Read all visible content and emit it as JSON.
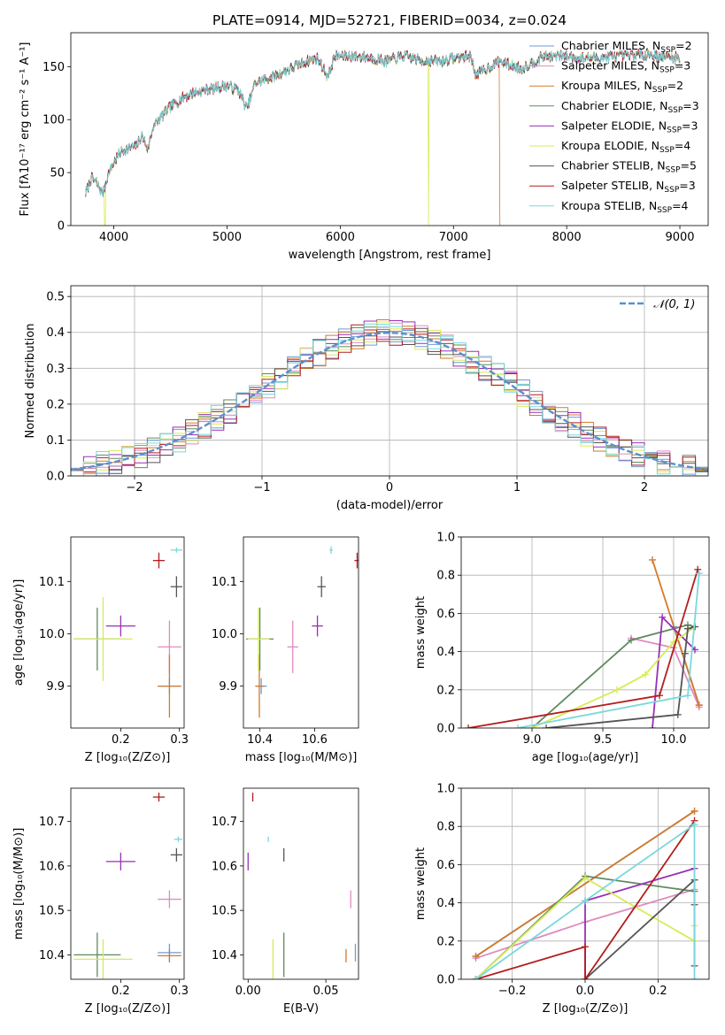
{
  "colors": {
    "Chabrier MILES": "#6f9bd8",
    "Salpeter MILES": "#e08bc0",
    "Kroupa MILES": "#d27a2a",
    "Chabrier ELODIE": "#5f8a60",
    "Salpeter ELODIE": "#9a2fb5",
    "Kroupa ELODIE": "#d5ec55",
    "Chabrier STELIB": "#555555",
    "Salpeter STELIB": "#b31d1d",
    "Kroupa STELIB": "#7ad8dd"
  },
  "chart_data": [
    {
      "id": "spectrum",
      "type": "line",
      "title": "PLATE=0914, MJD=52721, FIBERID=0034, z=0.024",
      "xlabel": "wavelength [Angstrom, rest frame]",
      "ylabel": "Flux [fλ10⁻¹⁷ erg cm⁻² s⁻¹ A⁻¹]",
      "xlim": [
        3620,
        9250
      ],
      "ylim": [
        0,
        182
      ],
      "xticks": [
        4000,
        5000,
        6000,
        7000,
        8000,
        9000
      ],
      "yticks": [
        0,
        50,
        100,
        150
      ],
      "legend_placement": "right",
      "legend": [
        {
          "label": "Chabrier MILES, N",
          "sub": "SSP",
          "suffix": "=2"
        },
        {
          "label": "Salpeter MILES, N",
          "sub": "SSP",
          "suffix": "=3"
        },
        {
          "label": "Kroupa MILES, N",
          "sub": "SSP",
          "suffix": "=2"
        },
        {
          "label": "Chabrier ELODIE, N",
          "sub": "SSP",
          "suffix": "=3"
        },
        {
          "label": "Salpeter ELODIE, N",
          "sub": "SSP",
          "suffix": "=3"
        },
        {
          "label": "Kroupa ELODIE, N",
          "sub": "SSP",
          "suffix": "=4"
        },
        {
          "label": "Chabrier STELIB, N",
          "sub": "SSP",
          "suffix": "=5"
        },
        {
          "label": "Salpeter STELIB, N",
          "sub": "SSP",
          "suffix": "=3"
        },
        {
          "label": "Kroupa STELIB, N",
          "sub": "SSP",
          "suffix": "=4"
        }
      ],
      "continuum": [
        [
          3750,
          30
        ],
        [
          3800,
          45
        ],
        [
          3850,
          40
        ],
        [
          3900,
          30
        ],
        [
          3950,
          48
        ],
        [
          4000,
          60
        ],
        [
          4050,
          68
        ],
        [
          4100,
          72
        ],
        [
          4200,
          75
        ],
        [
          4250,
          85
        ],
        [
          4300,
          72
        ],
        [
          4350,
          95
        ],
        [
          4400,
          100
        ],
        [
          4500,
          112
        ],
        [
          4600,
          120
        ],
        [
          4700,
          125
        ],
        [
          4800,
          128
        ],
        [
          4900,
          130
        ],
        [
          5000,
          132
        ],
        [
          5100,
          128
        ],
        [
          5175,
          110
        ],
        [
          5250,
          135
        ],
        [
          5400,
          140
        ],
        [
          5500,
          145
        ],
        [
          5600,
          150
        ],
        [
          5700,
          155
        ],
        [
          5800,
          158
        ],
        [
          5893,
          140
        ],
        [
          5950,
          160
        ],
        [
          6100,
          160
        ],
        [
          6300,
          158
        ],
        [
          6400,
          155
        ],
        [
          6563,
          160
        ],
        [
          6700,
          156
        ],
        [
          6900,
          155
        ],
        [
          7000,
          158
        ],
        [
          7150,
          160
        ],
        [
          7200,
          142
        ],
        [
          7400,
          155
        ],
        [
          7600,
          148
        ],
        [
          7800,
          160
        ],
        [
          8000,
          160
        ],
        [
          8200,
          158
        ],
        [
          8500,
          160
        ],
        [
          8700,
          162
        ],
        [
          8800,
          160
        ],
        [
          9000,
          158
        ]
      ],
      "dropouts": [
        {
          "series": "Kroupa ELODIE",
          "x": 3920
        },
        {
          "series": "Kroupa ELODIE",
          "x": 6780
        },
        {
          "series": "Kroupa MILES",
          "x": 7410
        }
      ]
    },
    {
      "id": "residuals",
      "type": "step",
      "xlabel": "(data-model)/error",
      "ylabel": "Normed distribution",
      "xlim": [
        -2.5,
        2.5
      ],
      "ylim": [
        0,
        0.53
      ],
      "xticks": [
        -2,
        -1,
        0,
        1,
        2
      ],
      "yticks": [
        0.0,
        0.1,
        0.2,
        0.3,
        0.4,
        0.5
      ],
      "grid": true,
      "legend_placement": "top-right",
      "gaussian_label": "𝒩(0, 1)",
      "gaussian_color": "#5b8fd0",
      "bin_width": 0.1
    },
    {
      "id": "age-vs-Z",
      "type": "errorbar",
      "xlabel": "Z [log₁₀(Z/Z⊙)]",
      "ylabel": "age  [log₁₀(age/yr)]",
      "xlim": [
        0.115,
        0.308
      ],
      "ylim": [
        9.82,
        10.185
      ],
      "xticks": [
        0.2,
        0.3
      ],
      "yticks": [
        9.9,
        10.0,
        10.1
      ],
      "points": [
        {
          "series": "Chabrier MILES",
          "x": 0.283,
          "y": 9.9,
          "xerr": 0.02,
          "yerr": 0.015
        },
        {
          "series": "Salpeter MILES",
          "x": 0.283,
          "y": 9.975,
          "xerr": 0.02,
          "yerr": 0.05
        },
        {
          "series": "Kroupa MILES",
          "x": 0.283,
          "y": 9.9,
          "xerr": 0.02,
          "yerr": 0.06
        },
        {
          "series": "Chabrier ELODIE",
          "x": 0.16,
          "y": 9.99,
          "xerr": 0.04,
          "yerr": 0.06
        },
        {
          "series": "Salpeter ELODIE",
          "x": 0.2,
          "y": 10.015,
          "xerr": 0.025,
          "yerr": 0.02
        },
        {
          "series": "Kroupa ELODIE",
          "x": 0.17,
          "y": 9.99,
          "xerr": 0.05,
          "yerr": 0.08
        },
        {
          "series": "Chabrier STELIB",
          "x": 0.295,
          "y": 10.09,
          "xerr": 0.01,
          "yerr": 0.02
        },
        {
          "series": "Salpeter STELIB",
          "x": 0.265,
          "y": 10.14,
          "xerr": 0.01,
          "yerr": 0.015
        },
        {
          "series": "Kroupa STELIB",
          "x": 0.295,
          "y": 10.16,
          "xerr": 0.01,
          "yerr": 0.005
        }
      ]
    },
    {
      "id": "age-vs-mass",
      "type": "errorbar",
      "xlabel": "mass [log₁₀(M/M⊙)]",
      "ylabel": "",
      "xlim": [
        10.34,
        10.76
      ],
      "ylim": [
        9.82,
        10.185
      ],
      "xticks": [
        10.4,
        10.6
      ],
      "yticks": [
        9.9,
        10.0,
        10.1
      ],
      "points": [
        {
          "series": "Chabrier MILES",
          "x": 10.405,
          "y": 9.9,
          "xerr": 0.02,
          "yerr": 0.015
        },
        {
          "series": "Salpeter MILES",
          "x": 10.52,
          "y": 9.975,
          "xerr": 0.02,
          "yerr": 0.05
        },
        {
          "series": "Kroupa MILES",
          "x": 10.398,
          "y": 9.9,
          "xerr": 0.015,
          "yerr": 0.06
        },
        {
          "series": "Chabrier ELODIE",
          "x": 10.4,
          "y": 9.99,
          "xerr": 0.05,
          "yerr": 0.06
        },
        {
          "series": "Salpeter ELODIE",
          "x": 10.61,
          "y": 10.015,
          "xerr": 0.02,
          "yerr": 0.02
        },
        {
          "series": "Kroupa ELODIE",
          "x": 10.395,
          "y": 9.99,
          "xerr": 0.04,
          "yerr": 0.06
        },
        {
          "series": "Chabrier STELIB",
          "x": 10.625,
          "y": 10.09,
          "xerr": 0.015,
          "yerr": 0.02
        },
        {
          "series": "Salpeter STELIB",
          "x": 10.755,
          "y": 10.14,
          "xerr": 0.01,
          "yerr": 0.015
        },
        {
          "series": "Kroupa STELIB",
          "x": 10.66,
          "y": 10.16,
          "xerr": 0.006,
          "yerr": 0.007
        }
      ]
    },
    {
      "id": "mass-weight-vs-age",
      "type": "line",
      "xlabel": "age  [log₁₀(age/yr)]",
      "ylabel": "mass weight",
      "xlim": [
        8.5,
        10.25
      ],
      "ylim": [
        0,
        1.0
      ],
      "xticks": [
        9.0,
        9.5,
        10.0
      ],
      "yticks": [
        0.0,
        0.2,
        0.4,
        0.6,
        0.8,
        1.0
      ],
      "grid": true,
      "series": [
        {
          "name": "Chabrier MILES",
          "x": [
            10.0,
            10.18
          ],
          "y": [
            0.53,
            0.12
          ]
        },
        {
          "name": "Salpeter MILES",
          "x": [
            9.7,
            10.0,
            10.18
          ],
          "y": [
            0.47,
            0.42,
            0.11
          ]
        },
        {
          "name": "Kroupa MILES",
          "x": [
            9.85,
            10.18
          ],
          "y": [
            0.88,
            0.12
          ]
        },
        {
          "name": "Chabrier ELODIE",
          "x": [
            9.0,
            9.7,
            10.1,
            10.15
          ],
          "y": [
            0.0,
            0.46,
            0.54,
            0.53
          ]
        },
        {
          "name": "Salpeter ELODIE",
          "x": [
            9.85,
            9.92,
            10.15
          ],
          "y": [
            0.0,
            0.58,
            0.41
          ]
        },
        {
          "name": "Kroupa ELODIE",
          "x": [
            9.0,
            9.6,
            9.8,
            10.0,
            10.15
          ],
          "y": [
            0.0,
            0.2,
            0.28,
            0.45,
            0.53
          ]
        },
        {
          "name": "Chabrier STELIB",
          "x": [
            9.1,
            10.03,
            10.08,
            10.1,
            10.15
          ],
          "y": [
            0.0,
            0.07,
            0.39,
            0.52,
            0.53
          ]
        },
        {
          "name": "Salpeter STELIB",
          "x": [
            8.55,
            9.9,
            10.17
          ],
          "y": [
            0.0,
            0.17,
            0.83
          ]
        },
        {
          "name": "Kroupa STELIB",
          "x": [
            8.9,
            10.1,
            10.18
          ],
          "y": [
            0.0,
            0.17,
            0.81
          ]
        }
      ]
    },
    {
      "id": "mass-vs-Z",
      "type": "errorbar",
      "xlabel": "Z [log₁₀(Z/Z⊙)]",
      "ylabel": "mass [log₁₀(M/M⊙)]",
      "xlim": [
        0.115,
        0.308
      ],
      "ylim": [
        10.345,
        10.775
      ],
      "xticks": [
        0.2,
        0.3
      ],
      "yticks": [
        10.4,
        10.5,
        10.6,
        10.7
      ],
      "points": [
        {
          "series": "Chabrier MILES",
          "x": 0.283,
          "y": 10.405,
          "xerr": 0.02,
          "yerr": 0.02
        },
        {
          "series": "Salpeter MILES",
          "x": 0.283,
          "y": 10.525,
          "xerr": 0.02,
          "yerr": 0.02
        },
        {
          "series": "Kroupa MILES",
          "x": 0.283,
          "y": 10.398,
          "xerr": 0.02,
          "yerr": 0.015
        },
        {
          "series": "Chabrier ELODIE",
          "x": 0.16,
          "y": 10.4,
          "xerr": 0.04,
          "yerr": 0.05
        },
        {
          "series": "Salpeter ELODIE",
          "x": 0.2,
          "y": 10.61,
          "xerr": 0.025,
          "yerr": 0.02
        },
        {
          "series": "Kroupa ELODIE",
          "x": 0.17,
          "y": 10.39,
          "xerr": 0.05,
          "yerr": 0.045
        },
        {
          "series": "Chabrier STELIB",
          "x": 0.295,
          "y": 10.625,
          "xerr": 0.01,
          "yerr": 0.015
        },
        {
          "series": "Salpeter STELIB",
          "x": 0.265,
          "y": 10.755,
          "xerr": 0.01,
          "yerr": 0.01
        },
        {
          "series": "Kroupa STELIB",
          "x": 0.298,
          "y": 10.66,
          "xerr": 0.007,
          "yerr": 0.006
        }
      ]
    },
    {
      "id": "mass-vs-EBV",
      "type": "errorbar",
      "xlabel": "E(B-V)",
      "ylabel": "",
      "xlim": [
        -0.003,
        0.071
      ],
      "ylim": [
        10.345,
        10.775
      ],
      "xticks": [
        0.0,
        0.05
      ],
      "yticks": [
        10.4,
        10.5,
        10.6,
        10.7
      ],
      "points": [
        {
          "series": "Chabrier MILES",
          "x": 0.069,
          "y": 10.405,
          "xerr": 0.0,
          "yerr": 0.02
        },
        {
          "series": "Salpeter MILES",
          "x": 0.066,
          "y": 10.525,
          "xerr": 0.0,
          "yerr": 0.02
        },
        {
          "series": "Kroupa MILES",
          "x": 0.063,
          "y": 10.398,
          "xerr": 0.0,
          "yerr": 0.015
        },
        {
          "series": "Chabrier ELODIE",
          "x": 0.023,
          "y": 10.4,
          "xerr": 0.0,
          "yerr": 0.05
        },
        {
          "series": "Salpeter ELODIE",
          "x": 0.0,
          "y": 10.61,
          "xerr": 0.0,
          "yerr": 0.02
        },
        {
          "series": "Kroupa ELODIE",
          "x": 0.016,
          "y": 10.39,
          "xerr": 0.0,
          "yerr": 0.045
        },
        {
          "series": "Chabrier STELIB",
          "x": 0.023,
          "y": 10.625,
          "xerr": 0.0,
          "yerr": 0.015
        },
        {
          "series": "Salpeter STELIB",
          "x": 0.003,
          "y": 10.755,
          "xerr": 0.0,
          "yerr": 0.01
        },
        {
          "series": "Kroupa STELIB",
          "x": 0.013,
          "y": 10.66,
          "xerr": 0.0,
          "yerr": 0.006
        }
      ]
    },
    {
      "id": "mass-weight-vs-Z",
      "type": "line",
      "xlabel": "Z [log₁₀(Z/Z⊙)]",
      "ylabel": "mass weight",
      "xlim": [
        -0.34,
        0.34
      ],
      "ylim": [
        0,
        1.0
      ],
      "xticks": [
        -0.2,
        0.0,
        0.2
      ],
      "yticks": [
        0.0,
        0.2,
        0.4,
        0.6,
        0.8,
        1.0
      ],
      "grid": true,
      "series": [
        {
          "name": "Chabrier MILES",
          "x": [
            -0.3,
            0.3
          ],
          "y": [
            0.12,
            0.88
          ]
        },
        {
          "name": "Salpeter MILES",
          "x": [
            -0.3,
            0.0,
            0.3
          ],
          "y": [
            0.11,
            0.3,
            0.47
          ]
        },
        {
          "name": "Kroupa MILES",
          "x": [
            -0.3,
            0.3
          ],
          "y": [
            0.12,
            0.88
          ]
        },
        {
          "name": "Chabrier ELODIE",
          "x": [
            -0.3,
            0.0,
            0.3
          ],
          "y": [
            0.0,
            0.54,
            0.46
          ]
        },
        {
          "name": "Salpeter ELODIE",
          "x": [
            0.0,
            0.0,
            0.3
          ],
          "y": [
            0.0,
            0.41,
            0.58
          ]
        },
        {
          "name": "Kroupa ELODIE",
          "x": [
            -0.3,
            0.0,
            0.3,
            0.3
          ],
          "y": [
            0.0,
            0.53,
            0.2,
            0.28
          ]
        },
        {
          "name": "Chabrier STELIB",
          "x": [
            0.0,
            0.3,
            0.3,
            0.3
          ],
          "y": [
            0.0,
            0.52,
            0.39,
            0.07
          ]
        },
        {
          "name": "Salpeter STELIB",
          "x": [
            -0.3,
            0.0,
            0.0,
            0.3
          ],
          "y": [
            0.0,
            0.17,
            0.0,
            0.83
          ]
        },
        {
          "name": "Kroupa STELIB",
          "x": [
            -0.3,
            0.0,
            0.3,
            0.3
          ],
          "y": [
            0.0,
            0.41,
            0.81,
            0.0
          ]
        }
      ]
    }
  ]
}
